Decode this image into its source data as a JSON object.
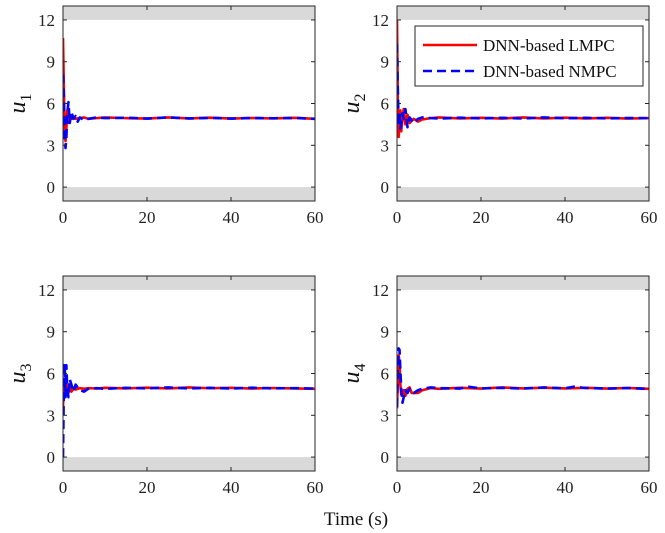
{
  "figure": {
    "xlabel": "Time (s)"
  },
  "legend": [
    {
      "label": "DNN-based LMPC",
      "color": "#ff0000",
      "dash": "solid"
    },
    {
      "label": "DNN-based NMPC",
      "color": "#0000ff",
      "dash": "dashed"
    }
  ],
  "bound_color": "#d9d9d9",
  "chart_data": [
    {
      "type": "line",
      "ylabel_base": "u",
      "ylabel_sub": "1",
      "xlim": [
        0,
        60
      ],
      "ylim": [
        -1,
        13
      ],
      "xticks": [
        "0",
        "20",
        "40",
        "60"
      ],
      "yticks": [
        "0",
        "3",
        "6",
        "9",
        "12"
      ],
      "constraints": {
        "lower": 0,
        "upper": 12
      },
      "series": [
        {
          "name": "DNN-based LMPC",
          "x": [
            0,
            0.2,
            0.4,
            0.6,
            0.8,
            1.0,
            1.3,
            1.6,
            2.0,
            2.5,
            3,
            4,
            5,
            6,
            8,
            10,
            15,
            20,
            25,
            30,
            35,
            40,
            45,
            50,
            55,
            60
          ],
          "y": [
            10.7,
            7.2,
            3.9,
            3.3,
            4.2,
            5.5,
            4.6,
            5.2,
            4.9,
            5.0,
            4.9,
            4.95,
            5.0,
            4.9,
            4.95,
            5.0,
            4.95,
            4.92,
            5.0,
            4.93,
            4.98,
            4.92,
            4.96,
            4.93,
            4.97,
            4.9
          ]
        },
        {
          "name": "DNN-based NMPC",
          "x": [
            0,
            0.2,
            0.4,
            0.6,
            0.8,
            1.0,
            1.3,
            1.6,
            2.0,
            2.5,
            3,
            3.5,
            4,
            5,
            6,
            8,
            10,
            15,
            20,
            25,
            30,
            35,
            40,
            45,
            50,
            55,
            60
          ],
          "y": [
            8.1,
            6.5,
            3.5,
            2.8,
            3.5,
            5.2,
            6.1,
            4.6,
            5.4,
            4.9,
            5.1,
            4.7,
            5.0,
            4.8,
            4.9,
            5.0,
            4.95,
            4.98,
            4.92,
            5.0,
            4.93,
            4.97,
            4.92,
            4.96,
            4.94,
            4.96,
            4.9
          ]
        }
      ]
    },
    {
      "type": "line",
      "ylabel_base": "u",
      "ylabel_sub": "2",
      "xlim": [
        0,
        60
      ],
      "ylim": [
        -1,
        13
      ],
      "xticks": [
        "0",
        "20",
        "40",
        "60"
      ],
      "yticks": [
        "0",
        "3",
        "6",
        "9",
        "12"
      ],
      "constraints": {
        "lower": 0,
        "upper": 12
      },
      "series": [
        {
          "name": "DNN-based LMPC",
          "x": [
            0,
            0.2,
            0.4,
            0.6,
            0.8,
            1.0,
            1.3,
            1.6,
            2.0,
            2.5,
            3,
            4,
            5,
            6,
            8,
            10,
            15,
            20,
            25,
            30,
            35,
            40,
            45,
            50,
            55,
            60
          ],
          "y": [
            12.0,
            6.0,
            3.6,
            4.5,
            5.5,
            4.0,
            4.9,
            5.6,
            4.5,
            5.2,
            4.6,
            4.9,
            4.7,
            4.85,
            4.95,
            5.0,
            4.93,
            4.97,
            4.92,
            5.0,
            4.93,
            4.98,
            4.93,
            4.97,
            4.92,
            4.95
          ]
        },
        {
          "name": "DNN-based NMPC",
          "x": [
            0,
            0.2,
            0.4,
            0.6,
            0.8,
            1.0,
            1.3,
            1.6,
            2.0,
            2.5,
            3,
            4,
            5,
            6,
            8,
            10,
            15,
            20,
            25,
            30,
            35,
            40,
            45,
            50,
            55,
            60
          ],
          "y": [
            10.3,
            7.0,
            4.4,
            5.4,
            4.2,
            4.6,
            5.3,
            4.9,
            5.6,
            4.3,
            5.0,
            4.6,
            4.9,
            5.0,
            4.95,
            4.92,
            4.98,
            4.93,
            4.97,
            4.92,
            5.0,
            4.94,
            4.97,
            4.93,
            4.96,
            4.95
          ]
        }
      ]
    },
    {
      "type": "line",
      "ylabel_base": "u",
      "ylabel_sub": "3",
      "xlim": [
        0,
        60
      ],
      "ylim": [
        -1,
        13
      ],
      "xticks": [
        "0",
        "20",
        "40",
        "60"
      ],
      "yticks": [
        "0",
        "3",
        "6",
        "9",
        "12"
      ],
      "constraints": {
        "lower": 0,
        "upper": 12
      },
      "series": [
        {
          "name": "DNN-based LMPC",
          "x": [
            0,
            0.2,
            0.4,
            0.6,
            0.8,
            1.0,
            1.3,
            1.6,
            2.0,
            2.5,
            3,
            4,
            5,
            6,
            8,
            10,
            15,
            20,
            25,
            30,
            35,
            40,
            45,
            50,
            55,
            60
          ],
          "y": [
            3.6,
            5.6,
            4.8,
            5.6,
            4.5,
            5.2,
            4.6,
            5.0,
            4.7,
            4.9,
            4.85,
            4.95,
            4.9,
            4.95,
            4.92,
            4.97,
            4.93,
            4.98,
            4.93,
            5.0,
            4.94,
            4.97,
            4.92,
            4.96,
            4.93,
            4.9
          ]
        },
        {
          "name": "DNN-based NMPC",
          "x": [
            0,
            0.2,
            0.4,
            0.6,
            0.8,
            1.0,
            1.3,
            1.6,
            2.0,
            2.5,
            3,
            4,
            5,
            6,
            8,
            10,
            15,
            20,
            25,
            30,
            35,
            40,
            45,
            50,
            55,
            60
          ],
          "y": [
            0.0,
            5.0,
            6.7,
            4.3,
            6.6,
            5.0,
            4.3,
            5.6,
            5.2,
            4.7,
            5.2,
            4.8,
            4.7,
            4.9,
            4.95,
            4.9,
            4.97,
            4.93,
            5.0,
            4.93,
            4.97,
            4.92,
            4.98,
            4.93,
            4.95,
            4.92
          ]
        }
      ]
    },
    {
      "type": "line",
      "ylabel_base": "u",
      "ylabel_sub": "4",
      "xlim": [
        0,
        60
      ],
      "ylim": [
        -1,
        13
      ],
      "xticks": [
        "0",
        "20",
        "40",
        "60"
      ],
      "yticks": [
        "0",
        "3",
        "6",
        "9",
        "12"
      ],
      "constraints": {
        "lower": 0,
        "upper": 12
      },
      "series": [
        {
          "name": "DNN-based LMPC",
          "x": [
            0,
            0.2,
            0.4,
            0.6,
            0.8,
            1.0,
            1.3,
            1.6,
            2.0,
            2.5,
            3,
            3.5,
            4,
            5,
            6,
            8,
            10,
            15,
            20,
            25,
            30,
            35,
            40,
            45,
            50,
            55,
            60
          ],
          "y": [
            3.5,
            5.5,
            7.3,
            6.8,
            5.2,
            4.5,
            4.4,
            4.8,
            4.4,
            4.9,
            5.0,
            4.6,
            4.6,
            4.6,
            4.8,
            4.95,
            4.9,
            4.97,
            4.92,
            5.0,
            4.93,
            4.98,
            4.93,
            4.97,
            4.92,
            4.96,
            4.9
          ]
        },
        {
          "name": "DNN-based NMPC",
          "x": [
            0,
            0.2,
            0.4,
            0.6,
            0.8,
            1.0,
            1.3,
            1.6,
            2.0,
            2.5,
            3,
            4,
            5,
            6,
            8,
            10,
            15,
            17,
            20,
            25,
            30,
            35,
            40,
            42,
            45,
            50,
            55,
            60
          ],
          "y": [
            3.6,
            6.6,
            7.8,
            7.7,
            6.2,
            4.9,
            3.9,
            4.3,
            4.8,
            4.6,
            4.9,
            4.6,
            4.8,
            4.9,
            5.0,
            4.95,
            4.92,
            5.05,
            4.93,
            4.97,
            4.92,
            5.0,
            4.93,
            5.05,
            4.96,
            4.92,
            4.96,
            4.9
          ]
        }
      ]
    }
  ]
}
